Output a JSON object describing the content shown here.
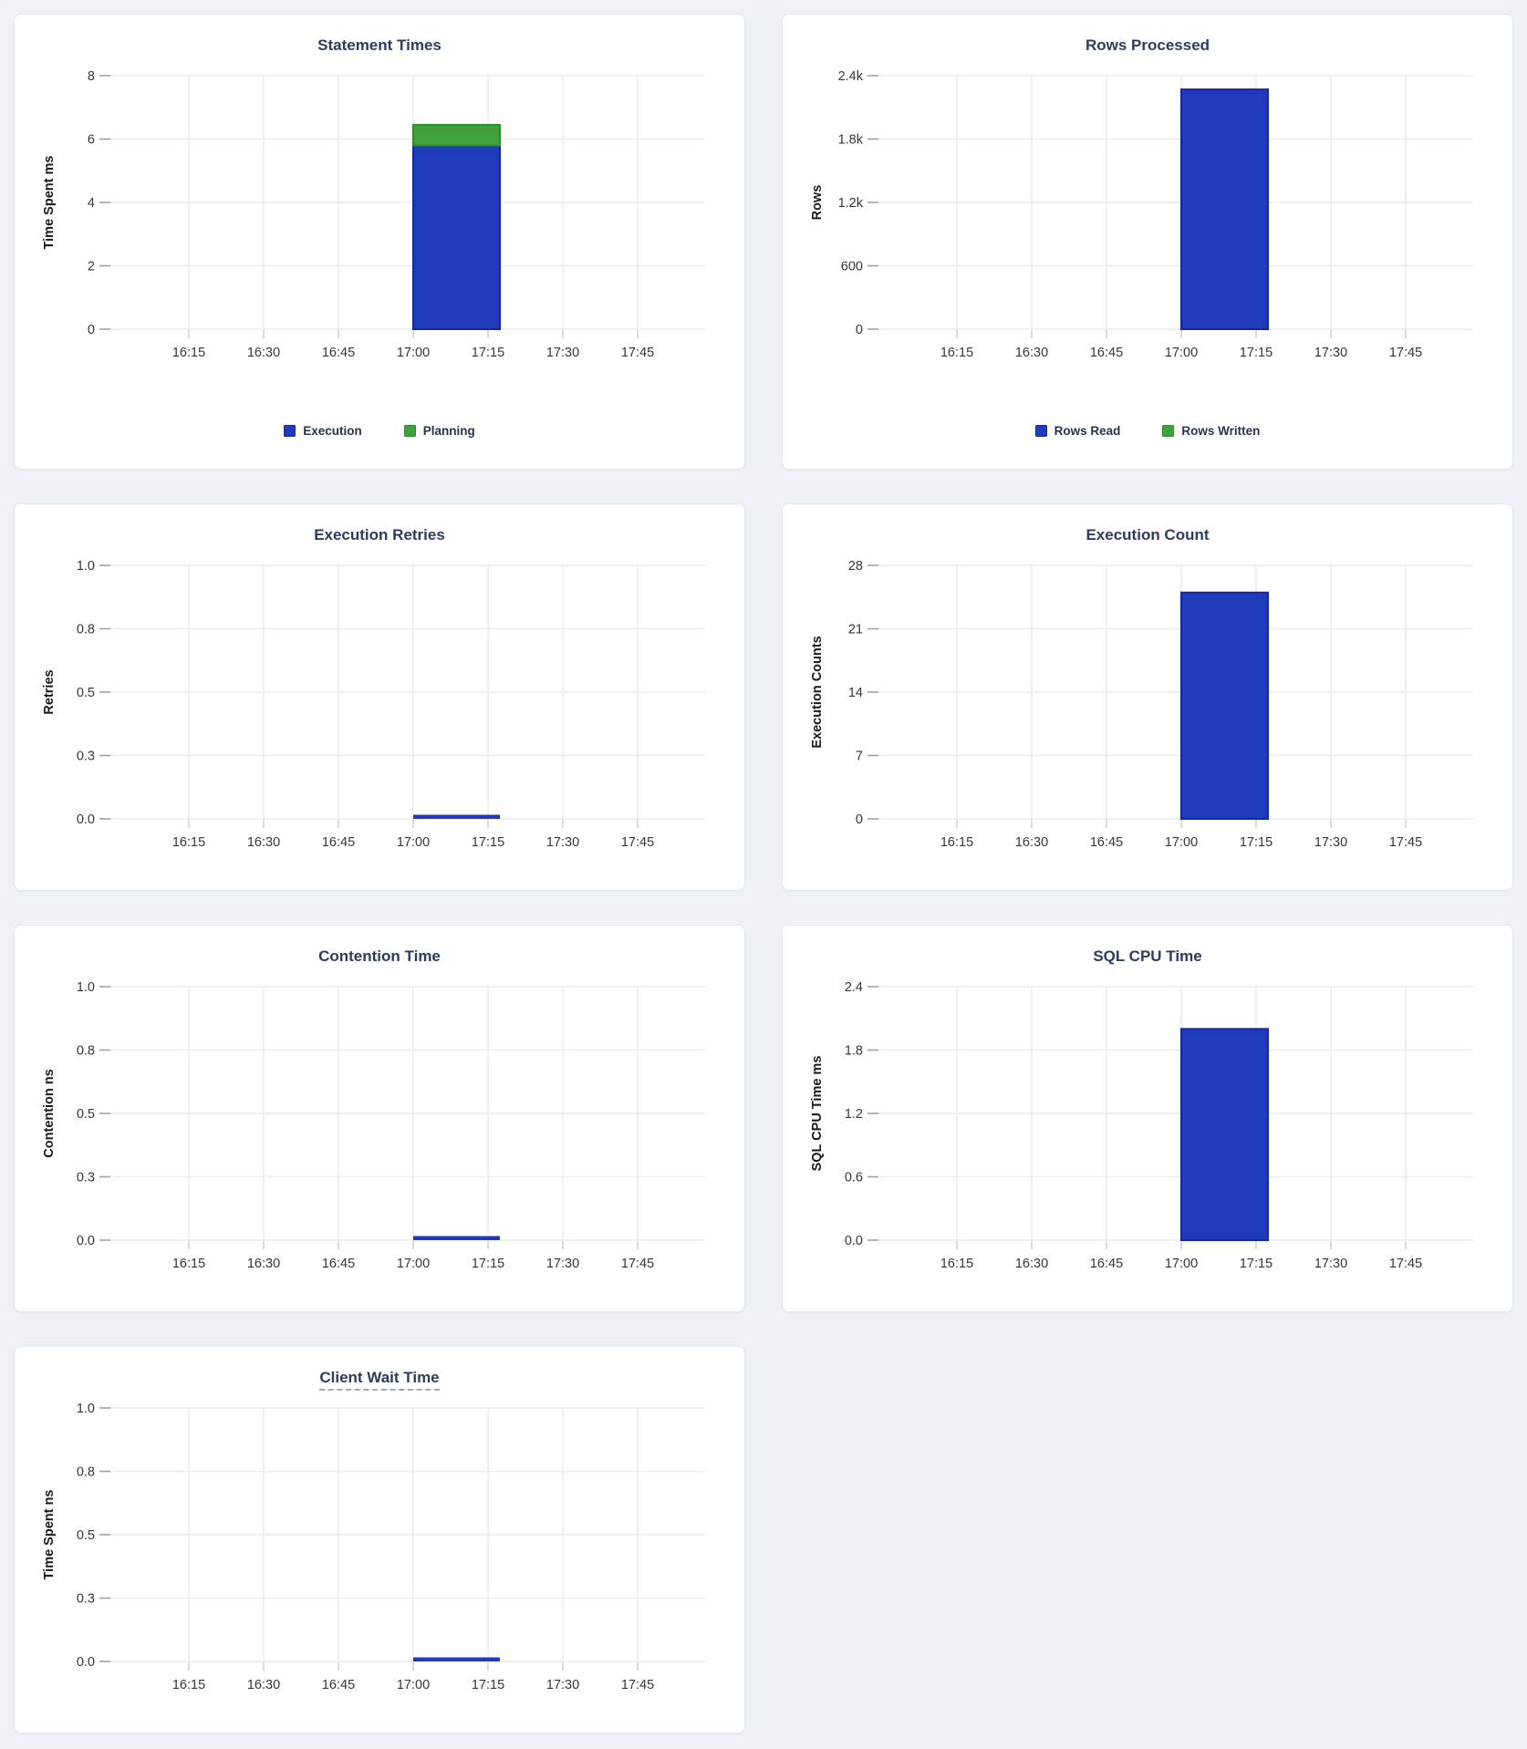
{
  "colors": {
    "blue": "#1F3BBB",
    "blue_border": "#1726A8",
    "green": "#3FA23D",
    "green_border": "#2E8B2C",
    "title_text": "#2B3C63",
    "tick_label": "#363636",
    "axis_label": "#1A1A1A",
    "gridline": "#ECECEC",
    "y_tick_stub": "#9E9E9E",
    "x_tick_stub": "#CFCFCF",
    "page_background": "#EEF2F6",
    "card_background": "#FFFFFF",
    "card_border": "#E3E8ED",
    "legend_text": "#26344F"
  },
  "x_axis": {
    "ticks": [
      "16:15",
      "16:30",
      "16:45",
      "17:00",
      "17:15",
      "17:30",
      "17:45"
    ]
  },
  "chart_data": [
    {
      "type": "bar",
      "title": "Statement Times",
      "ylabel": "Time Spent ms",
      "yticks": [
        "0",
        "2",
        "4",
        "6",
        "8"
      ],
      "ymax": 8,
      "stacked": true,
      "x_start": "17:00",
      "series": [
        {
          "name": "Execution",
          "color_key": "blue",
          "values": [
            5.8
          ]
        },
        {
          "name": "Planning",
          "color_key": "green",
          "values": [
            0.65
          ]
        }
      ],
      "legend": [
        {
          "label": "Execution",
          "color_key": "blue"
        },
        {
          "label": "Planning",
          "color_key": "green"
        }
      ]
    },
    {
      "type": "bar",
      "title": "Rows Processed",
      "ylabel": "Rows",
      "yticks": [
        "0",
        "600",
        "1.2k",
        "1.8k",
        "2.4k"
      ],
      "ymax": 2400,
      "stacked": true,
      "x_start": "17:00",
      "series": [
        {
          "name": "Rows Read",
          "color_key": "blue",
          "values": [
            2270
          ]
        },
        {
          "name": "Rows Written",
          "color_key": "green",
          "values": [
            0
          ]
        }
      ],
      "legend": [
        {
          "label": "Rows Read",
          "color_key": "blue"
        },
        {
          "label": "Rows Written",
          "color_key": "green"
        }
      ]
    },
    {
      "type": "bar",
      "title": "Execution Retries",
      "ylabel": "Retries",
      "yticks": [
        "0.0",
        "0.3",
        "0.5",
        "0.8",
        "1.0"
      ],
      "ymax": 1,
      "x_start": "17:00",
      "zero_bar": true,
      "series": [
        {
          "name": "Retries",
          "color_key": "blue",
          "values": [
            0
          ]
        }
      ]
    },
    {
      "type": "bar",
      "title": "Execution Count",
      "ylabel": "Execution Counts",
      "yticks": [
        "0",
        "7",
        "14",
        "21",
        "28"
      ],
      "ymax": 28,
      "x_start": "17:00",
      "series": [
        {
          "name": "Execution Count",
          "color_key": "blue",
          "values": [
            25
          ]
        }
      ]
    },
    {
      "type": "bar",
      "title": "Contention Time",
      "ylabel": "Contention ns",
      "yticks": [
        "0.0",
        "0.3",
        "0.5",
        "0.8",
        "1.0"
      ],
      "ymax": 1,
      "x_start": "17:00",
      "zero_bar": true,
      "series": [
        {
          "name": "Contention",
          "color_key": "blue",
          "values": [
            0
          ]
        }
      ]
    },
    {
      "type": "bar",
      "title": "SQL CPU Time",
      "ylabel": "SQL CPU Time ms",
      "yticks": [
        "0.0",
        "0.6",
        "1.2",
        "1.8",
        "2.4"
      ],
      "ymax": 2.4,
      "x_start": "17:00",
      "series": [
        {
          "name": "SQL CPU Time",
          "color_key": "blue",
          "values": [
            2.0
          ]
        }
      ]
    },
    {
      "type": "bar",
      "title": "Client Wait Time",
      "ylabel": "Time Spent ns",
      "yticks": [
        "0.0",
        "0.3",
        "0.5",
        "0.8",
        "1.0"
      ],
      "ymax": 1,
      "x_start": "17:00",
      "zero_bar": true,
      "title_underlined": true,
      "series": [
        {
          "name": "Client Wait",
          "color_key": "blue",
          "values": [
            0
          ]
        }
      ]
    }
  ]
}
